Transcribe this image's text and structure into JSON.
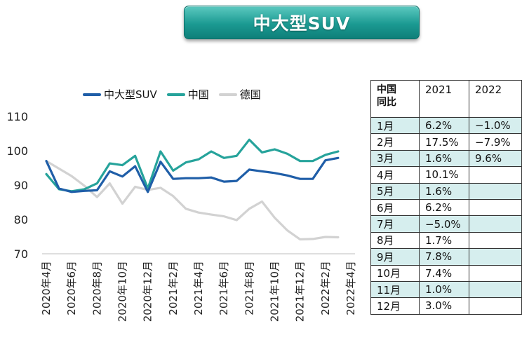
{
  "title": "中大型SUV",
  "colors": {
    "suv": "#1f5ea8",
    "china": "#26a39b",
    "germany": "#d2d2d2",
    "table_shade": "#d6eeee"
  },
  "chart_data": {
    "type": "line",
    "x": [
      "2020年4月",
      "2020年5月",
      "2020年6月",
      "2020年7月",
      "2020年8月",
      "2020年9月",
      "2020年10月",
      "2020年11月",
      "2020年12月",
      "2021年1月",
      "2021年2月",
      "2021年3月",
      "2021年4月",
      "2021年5月",
      "2021年6月",
      "2021年7月",
      "2021年8月",
      "2021年9月",
      "2021年10月",
      "2021年11月",
      "2021年12月",
      "2022年1月",
      "2022年2月",
      "2022年3月",
      "2022年4月"
    ],
    "tick_labels": [
      "2020年4月",
      "2020年6月",
      "2020年8月",
      "2020年10月",
      "2020年12月",
      "2021年2月",
      "2021年4月",
      "2021年6月",
      "2021年8月",
      "2021年10月",
      "2021年12月",
      "2022年2月",
      "2022年4月"
    ],
    "series": [
      {
        "name": "中大型SUV",
        "color": "#1f5ea8",
        "values": [
          97,
          89,
          88,
          88.3,
          88.5,
          94,
          92.5,
          95.5,
          88,
          96.8,
          91.8,
          92,
          92,
          92.2,
          91,
          91.2,
          94.5,
          94,
          93.5,
          92.8,
          91.8,
          91.8,
          97.2,
          97.9,
          null
        ]
      },
      {
        "name": "中国",
        "color": "#26a39b",
        "values": [
          93.2,
          88.8,
          88.2,
          88.8,
          90.5,
          96.3,
          95.8,
          98.5,
          89,
          99.8,
          94.2,
          96.6,
          97.5,
          99.8,
          97.9,
          98.5,
          103.2,
          99.5,
          100.4,
          99.1,
          97,
          97,
          98.8,
          99.8,
          null
        ]
      },
      {
        "name": "德国",
        "color": "#d2d2d2",
        "values": [
          97,
          94.8,
          92.6,
          89.8,
          86.5,
          90.5,
          84.6,
          89.5,
          88.6,
          89.2,
          86.8,
          83.1,
          82,
          81.4,
          80.9,
          79.8,
          83.1,
          85.2,
          80.5,
          76.8,
          74.2,
          74.3,
          74.9,
          74.8,
          null
        ]
      }
    ],
    "ylim": [
      70,
      110
    ],
    "yticks": [
      70,
      80,
      90,
      100,
      110
    ],
    "legend": "top"
  },
  "table": {
    "header": [
      "中国\n同比",
      "2021",
      "2022"
    ],
    "rows": [
      [
        "1月",
        "6.2%",
        "−1.0%"
      ],
      [
        "2月",
        "17.5%",
        "−7.9%"
      ],
      [
        "3月",
        "1.6%",
        "9.6%"
      ],
      [
        "4月",
        "10.1%",
        ""
      ],
      [
        "5月",
        "1.6%",
        ""
      ],
      [
        "6月",
        "6.2%",
        ""
      ],
      [
        "7月",
        "−5.0%",
        ""
      ],
      [
        "8月",
        "1.7%",
        ""
      ],
      [
        "9月",
        "7.8%",
        ""
      ],
      [
        "10月",
        "7.4%",
        ""
      ],
      [
        "11月",
        "1.0%",
        ""
      ],
      [
        "12月",
        "3.0%",
        ""
      ]
    ]
  }
}
